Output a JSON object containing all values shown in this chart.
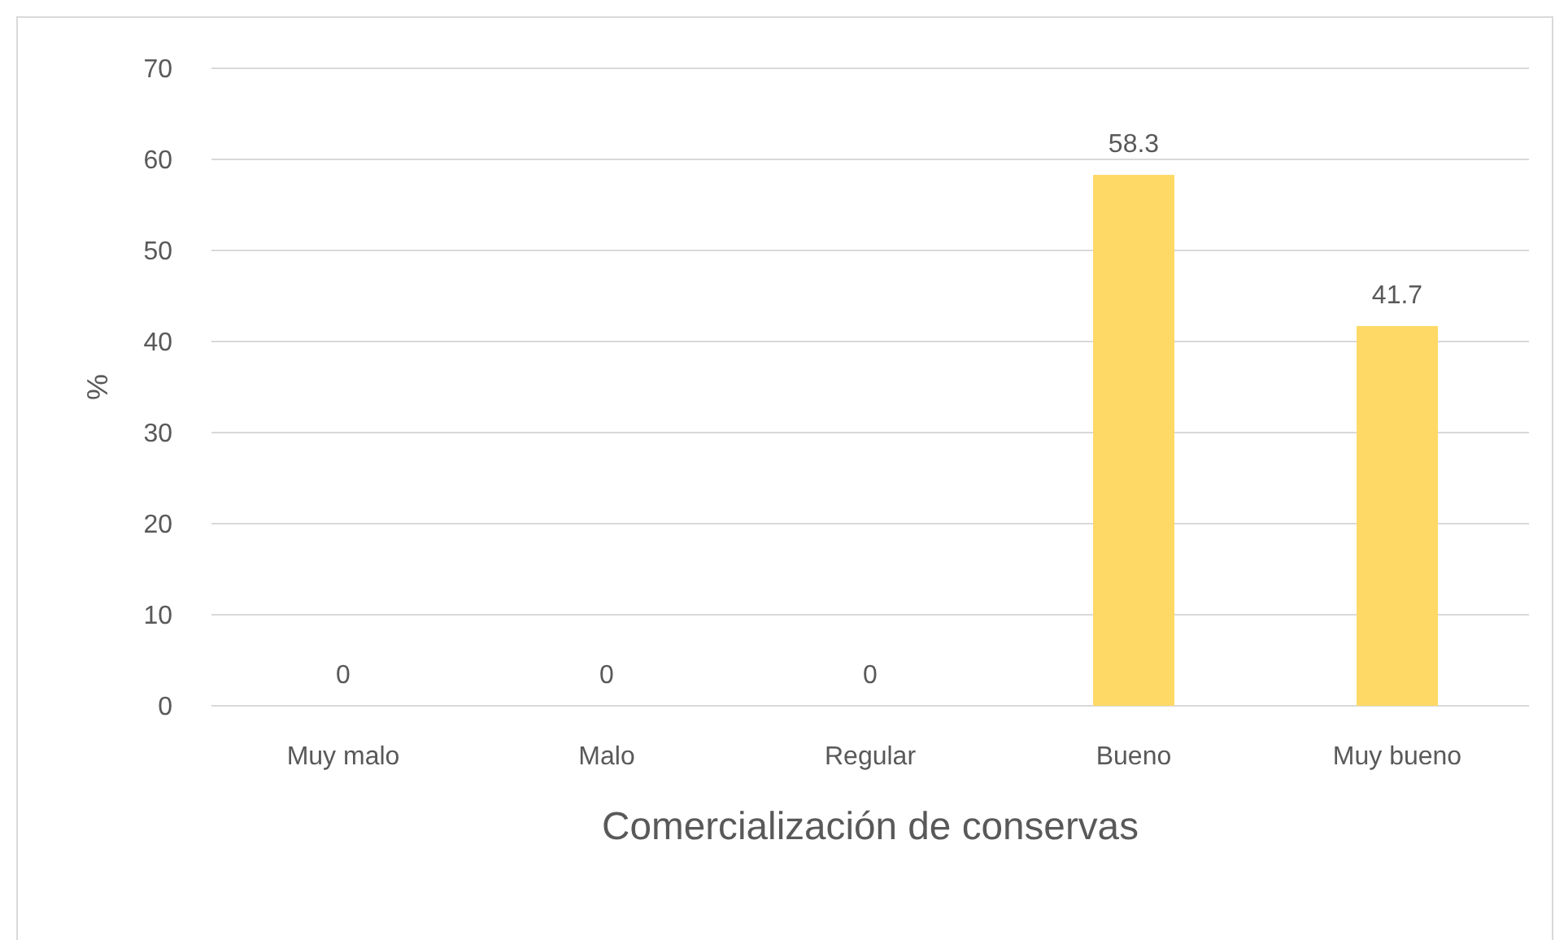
{
  "chart_data": {
    "type": "bar",
    "xlabel": "Comercialización de conservas",
    "ylabel": "%",
    "categories": [
      "Muy malo",
      "Malo",
      "Regular",
      "Bueno",
      "Muy bueno"
    ],
    "values": [
      0,
      0,
      0,
      58.3,
      41.7
    ],
    "color": "#ffd966",
    "ylim": [
      0,
      70
    ],
    "yticks": [
      0,
      10,
      20,
      30,
      40,
      50,
      60,
      70
    ],
    "grid": "y",
    "data_labels": true
  }
}
